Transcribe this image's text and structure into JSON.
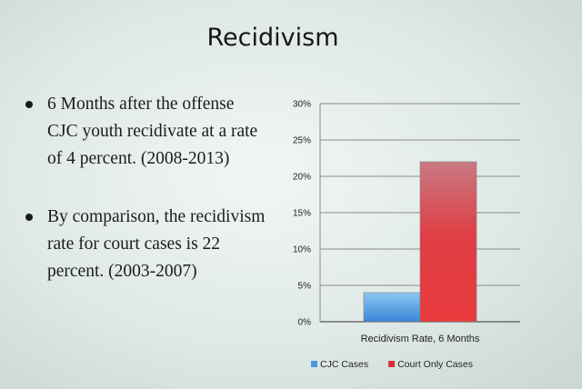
{
  "slide": {
    "title": "Recidivism",
    "bullets": [
      "6 Months after the offense CJC youth recidivate at a rate of 4 percent. (2008-2013)",
      "By comparison, the recidivism rate for court cases is 22 percent. (2003-2007)"
    ]
  },
  "chart_data": {
    "type": "bar",
    "categories": [
      "Recidivism Rate, 6 Months"
    ],
    "series": [
      {
        "name": "CJC Cases",
        "values": [
          4
        ],
        "color": "#4a97e0"
      },
      {
        "name": "Court Only Cases",
        "values": [
          22
        ],
        "color": "#d93036"
      }
    ],
    "ylim": [
      0,
      30
    ],
    "yticks": [
      "0%",
      "5%",
      "10%",
      "15%",
      "20%",
      "25%",
      "30%"
    ],
    "grid": true,
    "legend_position": "bottom"
  }
}
